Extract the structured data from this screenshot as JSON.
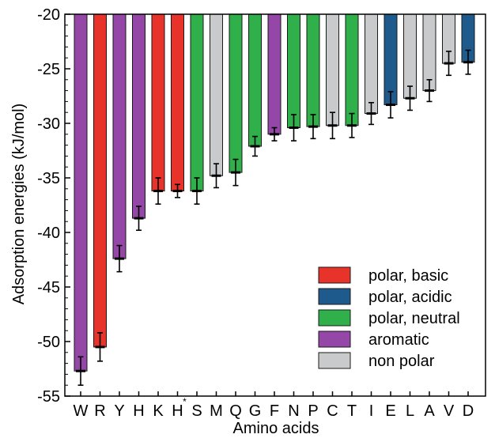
{
  "chart_data": {
    "type": "bar",
    "xlabel": "Amino acids",
    "ylabel": "Adsorption energies (kJ/mol)",
    "ylim": [
      -55,
      -20
    ],
    "yticks": [
      -55,
      -50,
      -45,
      -40,
      -35,
      -30,
      -25,
      -20
    ],
    "baseline": -20,
    "grid": false,
    "legend_position": "bottom-right",
    "categories": [
      "W",
      "R",
      "Y",
      "H",
      "K",
      "H*",
      "S",
      "M",
      "Q",
      "G",
      "F",
      "N",
      "P",
      "C",
      "T",
      "I",
      "E",
      "L",
      "A",
      "V",
      "D"
    ],
    "tick_labels": [
      "W",
      "R",
      "Y",
      "H",
      "K",
      "H",
      "S",
      "M",
      "Q",
      "G",
      "F",
      "N",
      "P",
      "C",
      "T",
      "I",
      "E",
      "L",
      "A",
      "V",
      "D"
    ],
    "tick_superscripts": [
      "",
      "",
      "",
      "",
      "",
      "*",
      "",
      "",
      "",
      "",
      "",
      "",
      "",
      "",
      "",
      "",
      "",
      "",
      "",
      "",
      ""
    ],
    "values": [
      -52.7,
      -50.5,
      -42.4,
      -38.7,
      -36.2,
      -36.2,
      -36.2,
      -34.8,
      -34.5,
      -32.1,
      -31.0,
      -30.4,
      -30.3,
      -30.2,
      -30.2,
      -29.1,
      -28.3,
      -27.7,
      -27.0,
      -24.5,
      -24.4
    ],
    "errors": [
      1.3,
      1.3,
      1.2,
      1.1,
      1.2,
      0.6,
      1.2,
      1.1,
      1.2,
      0.9,
      0.6,
      1.2,
      1.1,
      1.2,
      1.1,
      1.0,
      1.2,
      1.1,
      1.0,
      1.1,
      1.1
    ],
    "groups": [
      "aromatic",
      "polar_basic",
      "aromatic",
      "aromatic",
      "polar_basic",
      "polar_basic",
      "polar_neutral",
      "non_polar",
      "polar_neutral",
      "polar_neutral",
      "aromatic",
      "polar_neutral",
      "polar_neutral",
      "non_polar",
      "polar_neutral",
      "non_polar",
      "polar_acidic",
      "non_polar",
      "non_polar",
      "non_polar",
      "polar_acidic"
    ],
    "legend": [
      {
        "key": "polar_basic",
        "label": "polar, basic",
        "color": "#e8332a"
      },
      {
        "key": "polar_acidic",
        "label": "polar, acidic",
        "color": "#1f5a8c"
      },
      {
        "key": "polar_neutral",
        "label": "polar, neutral",
        "color": "#2fb04a"
      },
      {
        "key": "aromatic",
        "label": "aromatic",
        "color": "#9447a6"
      },
      {
        "key": "non_polar",
        "label": "non polar",
        "color": "#c9cacc"
      }
    ]
  }
}
